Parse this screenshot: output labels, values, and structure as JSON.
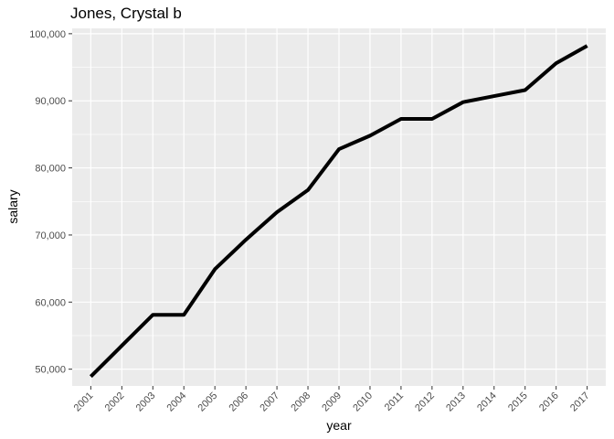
{
  "chart_data": {
    "type": "line",
    "title": "Jones, Crystal b",
    "xlabel": "year",
    "ylabel": "salary",
    "x": [
      "2001",
      "2002",
      "2003",
      "2004",
      "2005",
      "2006",
      "2007",
      "2008",
      "2009",
      "2010",
      "2011",
      "2012",
      "2013",
      "2014",
      "2015",
      "2016",
      "2017"
    ],
    "series": [
      {
        "values": [
          48900,
          53500,
          58100,
          58100,
          64900,
          69300,
          73400,
          76700,
          82800,
          84800,
          87300,
          87300,
          89800,
          90700,
          91600,
          95600,
          98200
        ]
      }
    ],
    "yticks": [
      50000,
      60000,
      70000,
      80000,
      90000,
      100000
    ],
    "ytick_labels": [
      "50,000",
      "60,000",
      "70,000",
      "80,000",
      "90,000",
      "100,000"
    ],
    "ylim": [
      47500,
      100800
    ],
    "grid": true,
    "line_color": "#000000",
    "panel_color": "#ebebeb",
    "grid_color": "#ffffff"
  }
}
